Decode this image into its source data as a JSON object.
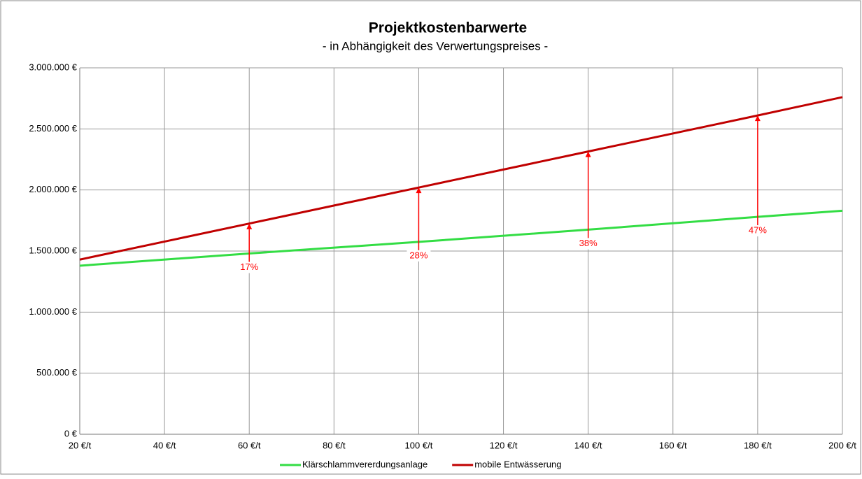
{
  "chart_data": {
    "type": "line",
    "title": "Projektkostenbarwerte",
    "subtitle": "- in Abhängigkeit des Verwertungspreises -",
    "x": [
      20,
      60,
      100,
      140,
      180,
      200
    ],
    "series": [
      {
        "name": "Klärschlammvererdungsanlage",
        "color": "#33dd44",
        "values": [
          1380000,
          1480000,
          1575000,
          1675000,
          1780000,
          1830000
        ]
      },
      {
        "name": "mobile Entwässerung",
        "color": "#c00000",
        "values": [
          1430000,
          1725000,
          2020000,
          2315000,
          2610000,
          2760000
        ]
      }
    ],
    "annotations": [
      {
        "x": 60,
        "value": 17,
        "label": "17%"
      },
      {
        "x": 100,
        "value": 28,
        "label": "28%"
      },
      {
        "x": 140,
        "value": 38,
        "label": "38%"
      },
      {
        "x": 180,
        "value": 47,
        "label": "47%"
      }
    ],
    "annotation_color": "#ff0000",
    "xlim": [
      20,
      200
    ],
    "xticks": [
      {
        "value": 20,
        "label": "20 €/t"
      },
      {
        "value": 40,
        "label": "40 €/t"
      },
      {
        "value": 60,
        "label": "60 €/t"
      },
      {
        "value": 80,
        "label": "80 €/t"
      },
      {
        "value": 100,
        "label": "100 €/t"
      },
      {
        "value": 120,
        "label": "120 €/t"
      },
      {
        "value": 140,
        "label": "140 €/t"
      },
      {
        "value": 160,
        "label": "160 €/t"
      },
      {
        "value": 180,
        "label": "180 €/t"
      },
      {
        "value": 200,
        "label": "200 €/t"
      }
    ],
    "ylim": [
      0,
      3000000
    ],
    "yticks": [
      {
        "value": 0,
        "label": "0 €"
      },
      {
        "value": 500000,
        "label": "500.000 €"
      },
      {
        "value": 1000000,
        "label": "1.000.000 €"
      },
      {
        "value": 1500000,
        "label": "1.500.000 €"
      },
      {
        "value": 2000000,
        "label": "2.000.000 €"
      },
      {
        "value": 2500000,
        "label": "2.500.000 €"
      },
      {
        "value": 3000000,
        "label": "3.000.000 €"
      }
    ],
    "grid": true,
    "legend": "bottom"
  }
}
